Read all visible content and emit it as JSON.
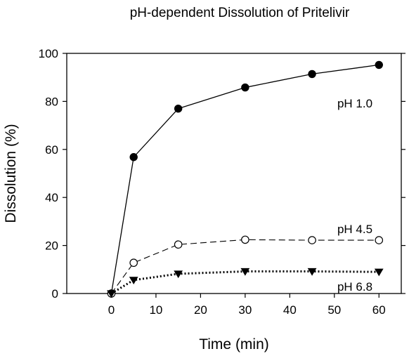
{
  "chart_data": {
    "type": "line",
    "title": "pH-dependent Dissolution of Pritelivir",
    "xlabel": "Time (min)",
    "ylabel": "Dissolution (%)",
    "xlim": [
      -10,
      65
    ],
    "ylim": [
      0,
      100
    ],
    "xticks": [
      0,
      10,
      20,
      30,
      40,
      50,
      60
    ],
    "yticks": [
      0,
      20,
      40,
      60,
      80,
      100
    ],
    "grid": false,
    "legend": "labels next to series",
    "series": [
      {
        "name": "pH 1.0",
        "marker": "filled-circle",
        "line": "solid",
        "x": [
          0,
          5,
          15,
          30,
          45,
          60
        ],
        "y": [
          0,
          56.8,
          77.0,
          85.8,
          91.4,
          95.2
        ]
      },
      {
        "name": "pH 4.5",
        "marker": "open-circle",
        "line": "dashed",
        "x": [
          0,
          5,
          15,
          30,
          45,
          60
        ],
        "y": [
          0,
          12.8,
          20.4,
          22.4,
          22.2,
          22.2
        ]
      },
      {
        "name": "pH 6.8",
        "marker": "filled-triangle-down",
        "line": "dotted",
        "x": [
          0,
          5,
          15,
          30,
          45,
          60
        ],
        "y": [
          0,
          5.6,
          8.2,
          9.2,
          9.2,
          9.0
        ]
      }
    ]
  }
}
